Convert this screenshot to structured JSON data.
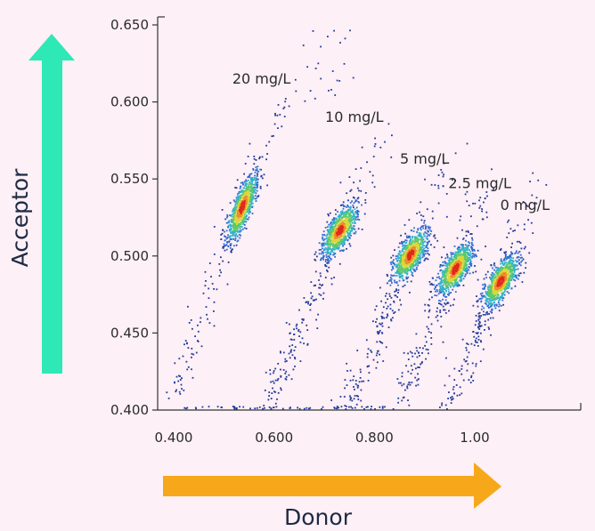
{
  "chart_data": {
    "type": "scatter",
    "title": "",
    "xlabel": "Donor",
    "ylabel": "Acceptor",
    "xlim": [
      0.36,
      1.2
    ],
    "ylim": [
      0.4,
      0.65
    ],
    "xticks": [
      {
        "value": 0.4,
        "label": "0.400"
      },
      {
        "value": 0.6,
        "label": "0.600"
      },
      {
        "value": 0.8,
        "label": "0.800"
      },
      {
        "value": 1.0,
        "label": "1.00"
      }
    ],
    "yticks": [
      {
        "value": 0.4,
        "label": "0.400"
      },
      {
        "value": 0.45,
        "label": "0.450"
      },
      {
        "value": 0.5,
        "label": "0.500"
      },
      {
        "value": 0.55,
        "label": "0.550"
      },
      {
        "value": 0.6,
        "label": "0.600"
      },
      {
        "value": 0.65,
        "label": "0.650"
      }
    ],
    "clusters": [
      {
        "label": "20 mg/L",
        "center": [
          0.535,
          0.532
        ],
        "label_at": [
          0.575,
          0.612
        ]
      },
      {
        "label": "10 mg/L",
        "center": [
          0.73,
          0.517
        ],
        "label_at": [
          0.76,
          0.587
        ]
      },
      {
        "label": "5 mg/L",
        "center": [
          0.87,
          0.501
        ],
        "label_at": [
          0.9,
          0.56
        ]
      },
      {
        "label": "2.5 mg/L",
        "center": [
          0.96,
          0.492
        ],
        "label_at": [
          1.01,
          0.544
        ]
      },
      {
        "label": "0 mg/L",
        "center": [
          1.05,
          0.484
        ],
        "label_at": [
          1.1,
          0.53
        ]
      }
    ],
    "density_colors": [
      "#223a9a",
      "#2f6ad0",
      "#2fb3c8",
      "#5ac86a",
      "#d8d83a",
      "#f08a2a",
      "#e02a1a"
    ],
    "grid": false,
    "arrows": {
      "acceptor_color": "#2ee8b5",
      "donor_color": "#f7a81a"
    }
  }
}
